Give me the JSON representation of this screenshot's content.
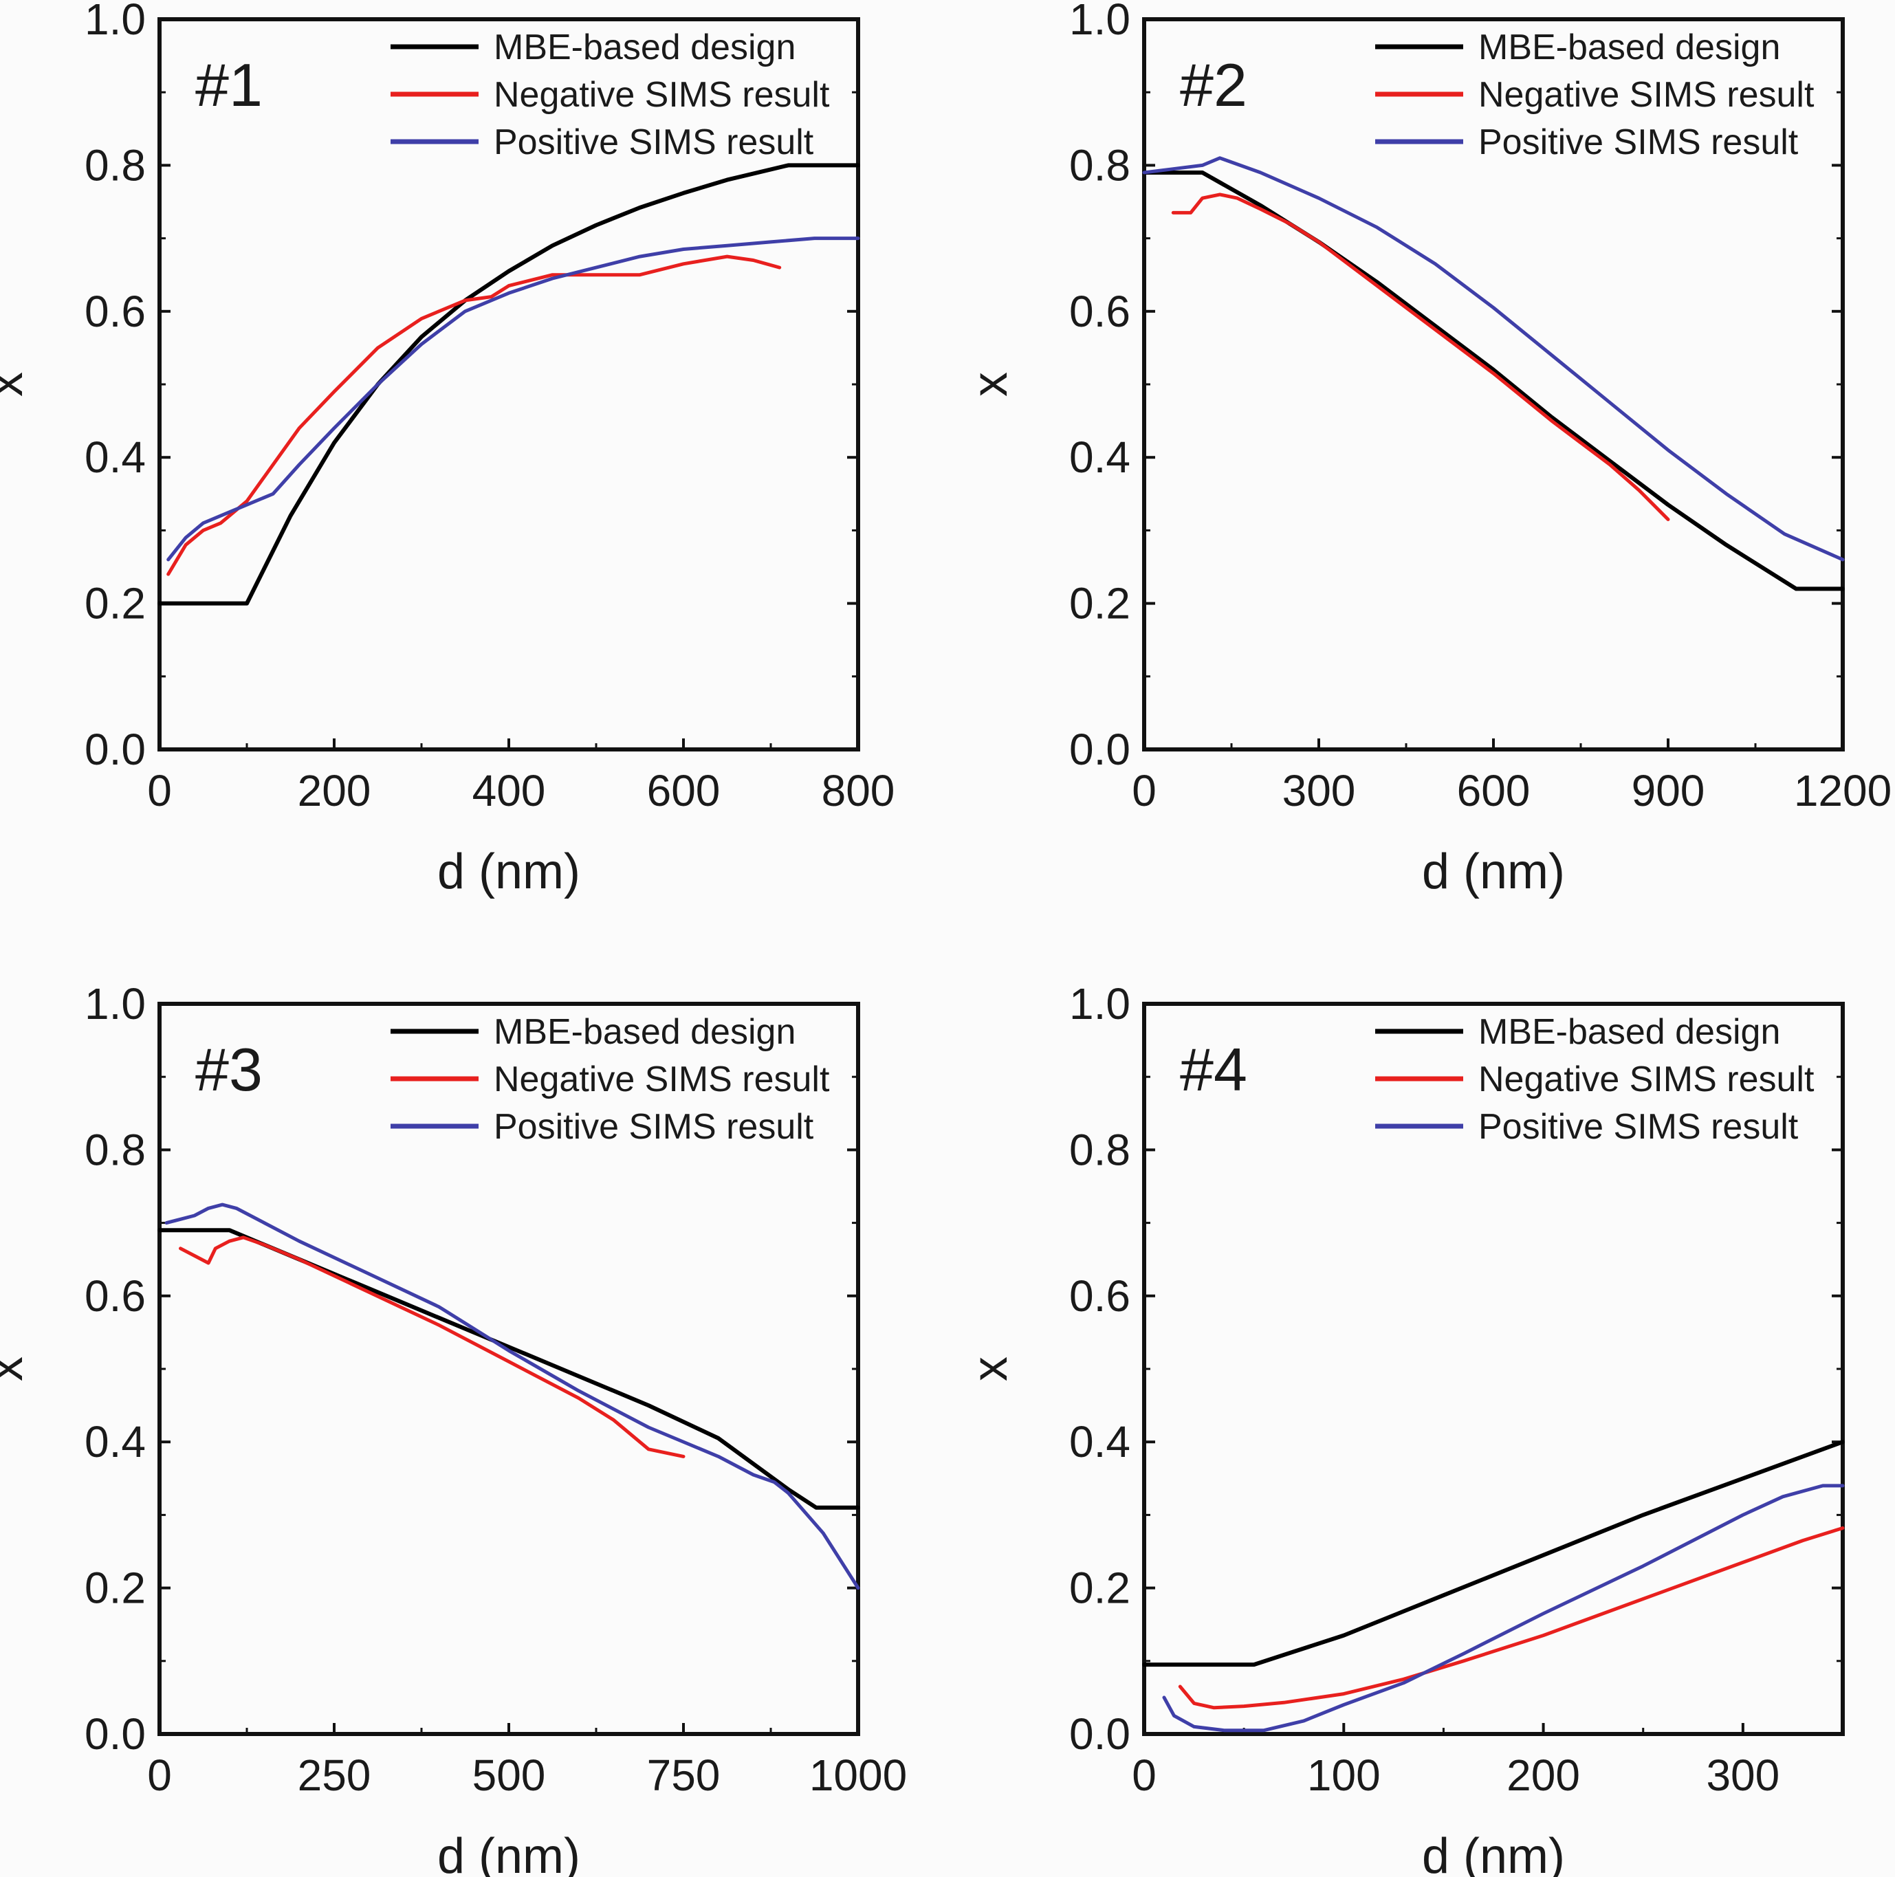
{
  "colors": {
    "design": "#000000",
    "negative": "#e8201e",
    "positive": "#3f3fa8",
    "frame": "#111111",
    "background": "#fbfbfb"
  },
  "legend": [
    "MBE-based design",
    "Negative SIMS result",
    "Positive SIMS result"
  ],
  "chart_data": [
    {
      "type": "line",
      "panel": "#1",
      "xlabel": "d (nm)",
      "ylabel": "x",
      "xlim": [
        0,
        800
      ],
      "ylim": [
        0,
        1.0
      ],
      "xticks": [
        0,
        200,
        400,
        600,
        800
      ],
      "yticks": [
        0.0,
        0.2,
        0.4,
        0.6,
        0.8,
        1.0
      ],
      "xtick_labels": [
        "0",
        "200",
        "400",
        "600",
        "800"
      ],
      "ytick_labels": [
        "0.0",
        "0.2",
        "0.4",
        "0.6",
        "0.8",
        "1.0"
      ],
      "legend_position": "top-right",
      "series": [
        {
          "name": "MBE-based design",
          "x": [
            0,
            100,
            150,
            200,
            250,
            300,
            350,
            400,
            450,
            500,
            550,
            600,
            650,
            720,
            800
          ],
          "y": [
            0.2,
            0.2,
            0.32,
            0.42,
            0.5,
            0.565,
            0.615,
            0.655,
            0.69,
            0.718,
            0.742,
            0.762,
            0.78,
            0.8,
            0.8
          ]
        },
        {
          "name": "Negative SIMS result",
          "x": [
            10,
            30,
            50,
            70,
            100,
            130,
            160,
            200,
            250,
            300,
            350,
            380,
            400,
            450,
            500,
            550,
            600,
            650,
            680,
            710
          ],
          "y": [
            0.24,
            0.28,
            0.3,
            0.31,
            0.34,
            0.39,
            0.44,
            0.49,
            0.55,
            0.59,
            0.615,
            0.62,
            0.635,
            0.65,
            0.65,
            0.65,
            0.665,
            0.675,
            0.67,
            0.66
          ]
        },
        {
          "name": "Positive SIMS result",
          "x": [
            10,
            30,
            50,
            80,
            100,
            130,
            160,
            200,
            250,
            300,
            350,
            400,
            450,
            500,
            550,
            600,
            650,
            700,
            750,
            800
          ],
          "y": [
            0.26,
            0.29,
            0.31,
            0.325,
            0.335,
            0.35,
            0.39,
            0.44,
            0.5,
            0.555,
            0.6,
            0.625,
            0.645,
            0.66,
            0.675,
            0.685,
            0.69,
            0.695,
            0.7,
            0.7
          ]
        }
      ]
    },
    {
      "type": "line",
      "panel": "#2",
      "xlabel": "d (nm)",
      "ylabel": "x",
      "xlim": [
        0,
        1200
      ],
      "ylim": [
        0,
        1.0
      ],
      "xticks": [
        0,
        300,
        600,
        900,
        1200
      ],
      "yticks": [
        0.0,
        0.2,
        0.4,
        0.6,
        0.8,
        1.0
      ],
      "xtick_labels": [
        "0",
        "300",
        "600",
        "900",
        "1200"
      ],
      "ytick_labels": [
        "0.0",
        "0.2",
        "0.4",
        "0.6",
        "0.8",
        "1.0"
      ],
      "legend_position": "top-right",
      "series": [
        {
          "name": "MBE-based design",
          "x": [
            0,
            100,
            200,
            300,
            400,
            500,
            600,
            700,
            800,
            900,
            1000,
            1120,
            1200
          ],
          "y": [
            0.79,
            0.79,
            0.745,
            0.695,
            0.64,
            0.58,
            0.52,
            0.455,
            0.395,
            0.335,
            0.28,
            0.22,
            0.22
          ]
        },
        {
          "name": "Negative SIMS result",
          "x": [
            50,
            80,
            100,
            130,
            160,
            200,
            250,
            300,
            400,
            500,
            600,
            700,
            750,
            800,
            850,
            900
          ],
          "y": [
            0.735,
            0.735,
            0.755,
            0.76,
            0.755,
            0.74,
            0.72,
            0.695,
            0.635,
            0.575,
            0.515,
            0.45,
            0.42,
            0.39,
            0.355,
            0.315
          ]
        },
        {
          "name": "Positive SIMS result",
          "x": [
            0,
            50,
            100,
            130,
            200,
            300,
            400,
            500,
            600,
            700,
            800,
            900,
            1000,
            1100,
            1200
          ],
          "y": [
            0.79,
            0.795,
            0.8,
            0.81,
            0.79,
            0.755,
            0.715,
            0.665,
            0.605,
            0.54,
            0.475,
            0.41,
            0.35,
            0.295,
            0.26
          ]
        }
      ]
    },
    {
      "type": "line",
      "panel": "#3",
      "xlabel": "d (nm)",
      "ylabel": "x",
      "xlim": [
        0,
        1000
      ],
      "ylim": [
        0,
        1.0
      ],
      "xticks": [
        0,
        250,
        500,
        750,
        1000
      ],
      "yticks": [
        0.0,
        0.2,
        0.4,
        0.6,
        0.8,
        1.0
      ],
      "xtick_labels": [
        "0",
        "250",
        "500",
        "750",
        "1000"
      ],
      "ytick_labels": [
        "0.0",
        "0.2",
        "0.4",
        "0.6",
        "0.8",
        "1.0"
      ],
      "legend_position": "top-right",
      "series": [
        {
          "name": "MBE-based design",
          "x": [
            0,
            100,
            200,
            300,
            400,
            500,
            600,
            700,
            800,
            900,
            940,
            1000
          ],
          "y": [
            0.69,
            0.69,
            0.65,
            0.61,
            0.57,
            0.53,
            0.49,
            0.45,
            0.405,
            0.335,
            0.31,
            0.31
          ]
        },
        {
          "name": "Negative SIMS result",
          "x": [
            30,
            50,
            70,
            80,
            100,
            120,
            150,
            200,
            300,
            400,
            500,
            600,
            650,
            700,
            750
          ],
          "y": [
            0.665,
            0.655,
            0.645,
            0.665,
            0.675,
            0.68,
            0.67,
            0.65,
            0.605,
            0.56,
            0.51,
            0.46,
            0.43,
            0.39,
            0.38
          ]
        },
        {
          "name": "Positive SIMS result",
          "x": [
            10,
            30,
            50,
            70,
            90,
            110,
            150,
            200,
            300,
            400,
            500,
            600,
            700,
            800,
            850,
            880,
            900,
            950,
            1000
          ],
          "y": [
            0.7,
            0.705,
            0.71,
            0.72,
            0.725,
            0.72,
            0.7,
            0.675,
            0.63,
            0.585,
            0.525,
            0.47,
            0.42,
            0.38,
            0.355,
            0.345,
            0.33,
            0.275,
            0.2
          ]
        }
      ]
    },
    {
      "type": "line",
      "panel": "#4",
      "xlabel": "d (nm)",
      "ylabel": "x",
      "xlim": [
        0,
        350
      ],
      "ylim": [
        0,
        1.0
      ],
      "xticks": [
        0,
        100,
        200,
        300
      ],
      "yticks": [
        0.0,
        0.2,
        0.4,
        0.6,
        0.8,
        1.0
      ],
      "xtick_labels": [
        "0",
        "100",
        "200",
        "300"
      ],
      "ytick_labels": [
        "0.0",
        "0.2",
        "0.4",
        "0.6",
        "0.8",
        "1.0"
      ],
      "legend_position": "top-right",
      "series": [
        {
          "name": "MBE-based design",
          "x": [
            0,
            55,
            100,
            150,
            200,
            250,
            300,
            350
          ],
          "y": [
            0.095,
            0.095,
            0.135,
            0.19,
            0.245,
            0.3,
            0.35,
            0.4
          ]
        },
        {
          "name": "Negative SIMS result",
          "x": [
            18,
            25,
            35,
            50,
            70,
            100,
            130,
            160,
            200,
            250,
            300,
            330,
            350
          ],
          "y": [
            0.065,
            0.042,
            0.036,
            0.038,
            0.043,
            0.055,
            0.075,
            0.1,
            0.135,
            0.185,
            0.235,
            0.265,
            0.282
          ]
        },
        {
          "name": "Positive SIMS result",
          "x": [
            10,
            15,
            25,
            40,
            60,
            80,
            100,
            130,
            160,
            200,
            250,
            300,
            320,
            340,
            350
          ],
          "y": [
            0.05,
            0.025,
            0.01,
            0.005,
            0.005,
            0.018,
            0.04,
            0.07,
            0.11,
            0.165,
            0.23,
            0.3,
            0.325,
            0.34,
            0.34
          ]
        }
      ]
    }
  ]
}
